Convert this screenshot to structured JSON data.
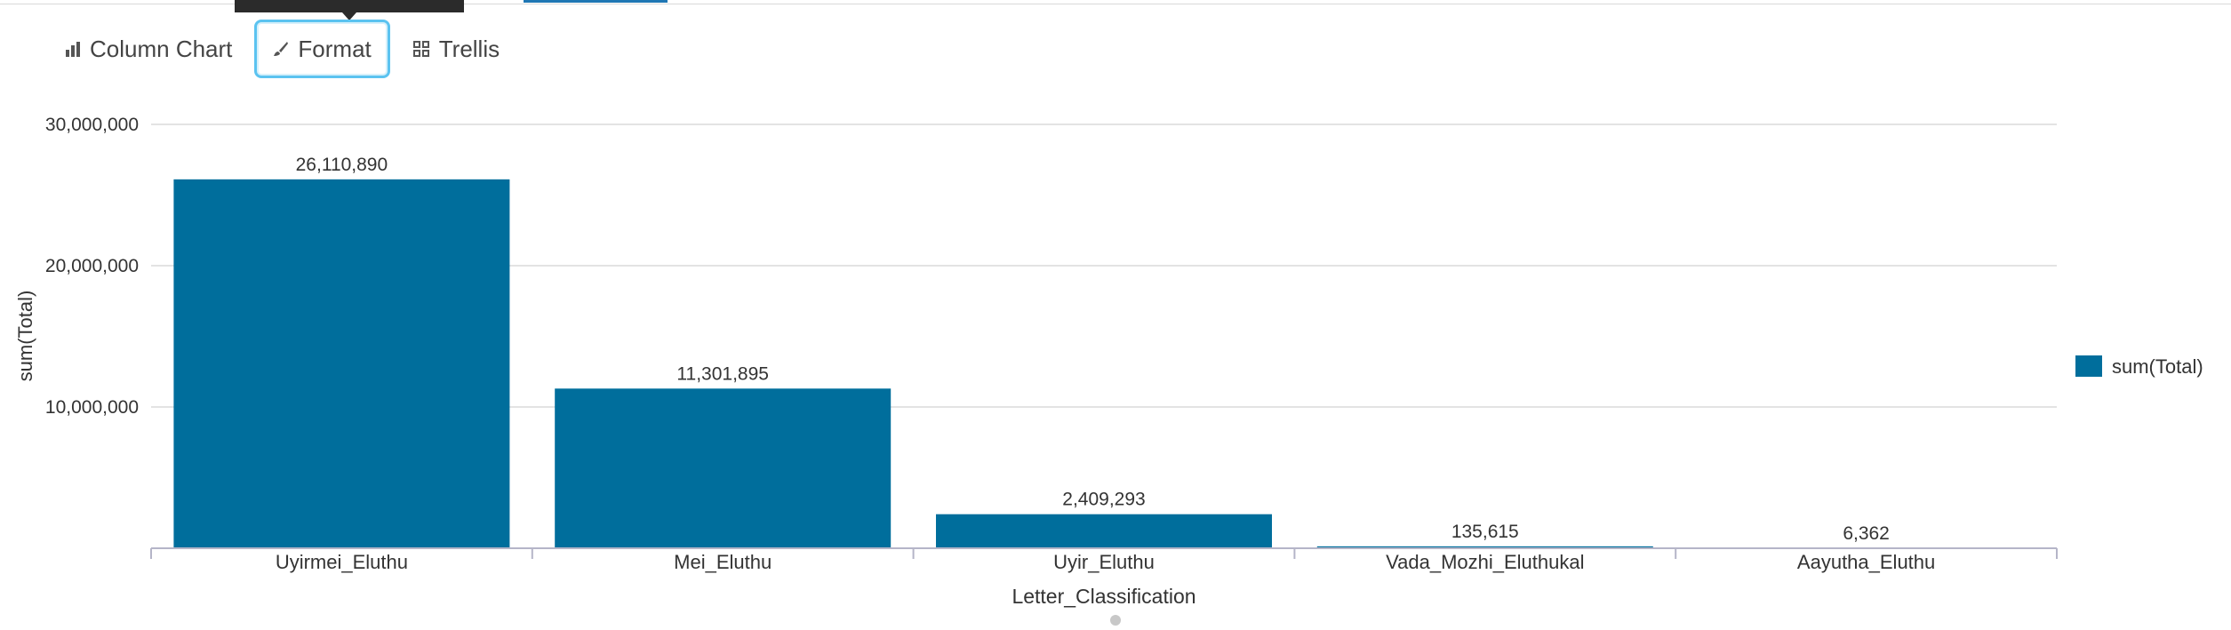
{
  "toolbar": {
    "items": [
      {
        "label": "Column Chart",
        "icon": "bar-chart-icon",
        "active": false
      },
      {
        "label": "Format",
        "icon": "brush-icon",
        "active": true
      },
      {
        "label": "Trellis",
        "icon": "grid-icon",
        "active": false
      }
    ]
  },
  "colors": {
    "series": "#006e9c",
    "active_border": "#5bc3f0",
    "grid": "#e3e3e3"
  },
  "chart_data": {
    "type": "bar",
    "xlabel": "Letter_Classification",
    "ylabel": "sum(Total)",
    "ylim": [
      0,
      30000000
    ],
    "yticks": [
      10000000,
      20000000,
      30000000
    ],
    "ytick_labels": [
      "10,000,000",
      "20,000,000",
      "30,000,000"
    ],
    "categories": [
      "Uyirmei_Eluthu",
      "Mei_Eluthu",
      "Uyir_Eluthu",
      "Vada_Mozhi_Eluthukal",
      "Aayutha_Eluthu"
    ],
    "series": [
      {
        "name": "sum(Total)",
        "values": [
          26110890,
          11301895,
          2409293,
          135615,
          6362
        ],
        "labels": [
          "26,110,890",
          "11,301,895",
          "2,409,293",
          "135,615",
          "6,362"
        ]
      }
    ],
    "grid": true,
    "legend": "right"
  }
}
